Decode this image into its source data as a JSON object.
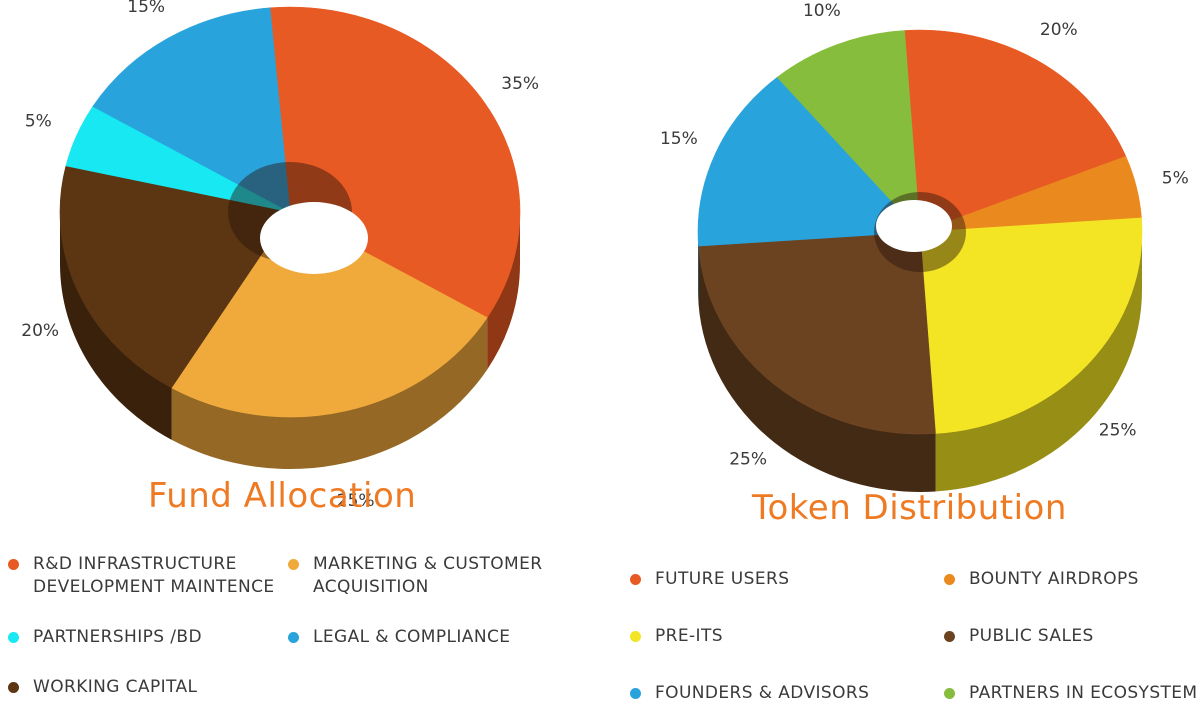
{
  "theme": {
    "title_color": "#ee7b24"
  },
  "chart_data": [
    {
      "type": "pie",
      "title": "Fund Allocation",
      "slices": [
        {
          "name": "R&D INFRASTRUCTURE DEVELOPMENT MAINTENCE",
          "label_lines": [
            "R&D INFRASTRUCTURE",
            "DEVELOPMENT MAINTENCE"
          ],
          "value": 35,
          "label": "35%",
          "color": "#e85a24"
        },
        {
          "name": "MARKETING & CUSTOMER ACQUISITION",
          "label_lines": [
            "MARKETING & CUSTOMER",
            "ACQUISITION"
          ],
          "value": 25,
          "label": "25%",
          "color": "#f0aa3c"
        },
        {
          "name": "WORKING CAPITAL",
          "label_lines": [
            "WORKING CAPITAL"
          ],
          "value": 20,
          "label": "20%",
          "color": "#5c3512"
        },
        {
          "name": "PARTNERSHIPS /BD",
          "label_lines": [
            "PARTNERSHIPS /BD"
          ],
          "value": 5,
          "label": "5%",
          "color": "#17e8f2"
        },
        {
          "name": "LEGAL & COMPLIANCE",
          "label_lines": [
            "LEGAL & COMPLIANCE"
          ],
          "value": 15,
          "label": "15%",
          "color": "#29a3dc"
        }
      ],
      "legend": {
        "placement": "bottom",
        "order": [
          "R&D INFRASTRUCTURE DEVELOPMENT MAINTENCE",
          "MARKETING & CUSTOMER ACQUISITION",
          "PARTNERSHIPS /BD",
          "LEGAL & COMPLIANCE",
          "WORKING CAPITAL"
        ]
      }
    },
    {
      "type": "pie",
      "title": "Token Distribution",
      "slices": [
        {
          "name": "FUTURE USERS",
          "label_lines": [
            "FUTURE USERS"
          ],
          "value": 20,
          "label": "20%",
          "color": "#e85a24"
        },
        {
          "name": "BOUNTY AIRDROPS",
          "label_lines": [
            "BOUNTY AIRDROPS"
          ],
          "value": 5,
          "label": "5%",
          "color": "#ea8a1e"
        },
        {
          "name": "PRE-ITS",
          "label_lines": [
            "PRE-ITS"
          ],
          "value": 25,
          "label": "25%",
          "color": "#f3e524"
        },
        {
          "name": "PUBLIC SALES",
          "label_lines": [
            "PUBLIC SALES"
          ],
          "value": 25,
          "label": "25%",
          "color": "#6c4321"
        },
        {
          "name": "FOUNDERS & ADVISORS",
          "label_lines": [
            "FOUNDERS & ADVISORS"
          ],
          "value": 15,
          "label": "15%",
          "color": "#29a3dc"
        },
        {
          "name": "PARTNERS IN ECOSYSTEM",
          "label_lines": [
            "PARTNERS IN ECOSYSTEM"
          ],
          "value": 10,
          "label": "10%",
          "color": "#86bd3c"
        }
      ],
      "legend": {
        "placement": "bottom",
        "order": [
          "FUTURE USERS",
          "BOUNTY AIRDROPS",
          "PRE-ITS",
          "PUBLIC SALES",
          "FOUNDERS & ADVISORS",
          "PARTNERS IN ECOSYSTEM"
        ]
      }
    }
  ]
}
